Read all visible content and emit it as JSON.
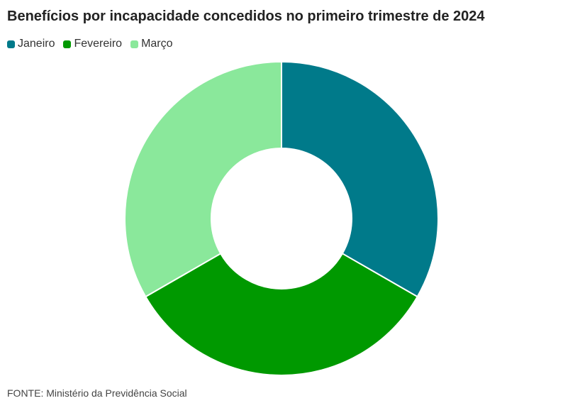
{
  "chart_data": {
    "type": "pie",
    "variant": "donut",
    "title": "Benefícios por incapacidade concedidos no primeiro trimestre de 2024",
    "categories": [
      "Janeiro",
      "Fevereiro",
      "Março"
    ],
    "values": [
      33.3,
      33.4,
      33.3
    ],
    "colors": [
      "#007a8a",
      "#009900",
      "#8ae89b"
    ],
    "legend_position": "top-left",
    "source": "FONTE: Ministério da Previdência Social"
  }
}
